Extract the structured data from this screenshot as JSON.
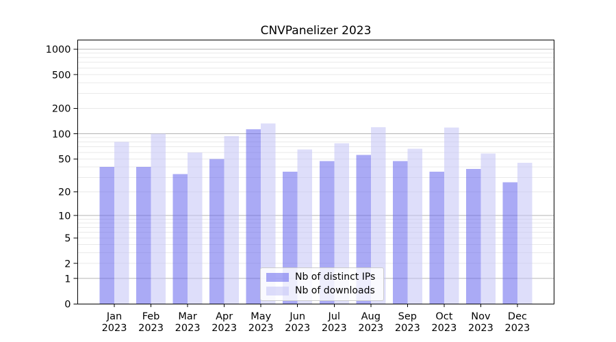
{
  "page": {
    "background": "#ffffff"
  },
  "chart_data": {
    "type": "bar",
    "title": "CNVPanelizer 2023",
    "categories": [
      "Jan 2023",
      "Feb 2023",
      "Mar 2023",
      "Apr 2023",
      "May 2023",
      "Jun 2023",
      "Jul 2023",
      "Aug 2023",
      "Sep 2023",
      "Oct 2023",
      "Nov 2023",
      "Dec 2023"
    ],
    "series": [
      {
        "name": "Nb of distinct IPs",
        "color": "#6464ec",
        "values": [
          40,
          40,
          33,
          50,
          113,
          35,
          47,
          56,
          47,
          35,
          38,
          26
        ]
      },
      {
        "name": "Nb of downloads",
        "color": "#c2c2f6",
        "values": [
          80,
          100,
          60,
          94,
          133,
          65,
          77,
          120,
          66,
          118,
          58,
          45
        ]
      }
    ],
    "bar_alpha": 0.55,
    "y_scale": "log1p",
    "y_ticks": [
      0,
      1,
      2,
      5,
      10,
      20,
      50,
      100,
      200,
      500,
      1000
    ],
    "ylim": [
      0,
      1290
    ],
    "xlabel": "",
    "ylabel": "",
    "grid": true,
    "legend_position": "lower center",
    "colors": {
      "grid_major": "#b3b3b3",
      "grid_minor": "#e9e9e9",
      "axis": "#000000",
      "legend_border": "#cccccc",
      "legend_background": "rgba(255,255,255,0.8)"
    }
  }
}
